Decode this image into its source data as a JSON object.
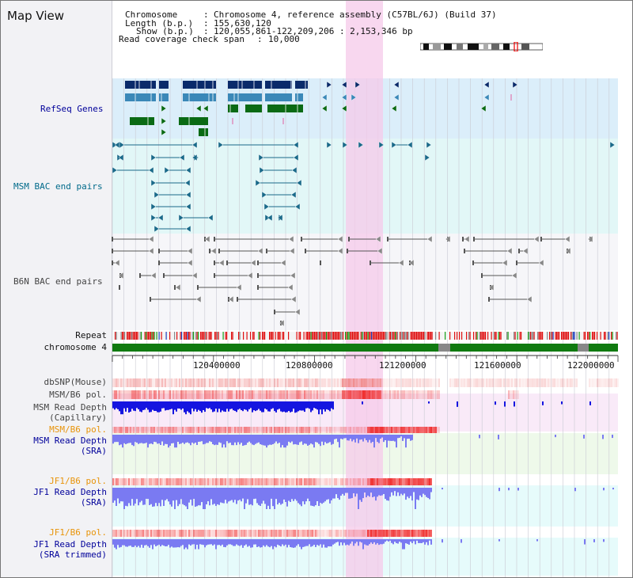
{
  "title": "Map View",
  "header": {
    "chromosome_key": "Chromosome",
    "chromosome_value": "Chromosome 4, reference assembly (C57BL/6J) (Build 37)",
    "length_key": "Length (b.p.)",
    "length_value": "155,630,120",
    "show_key": "Show (b.p.)",
    "show_value": "120,055,861-122,209,206 : 2,153,346 bp",
    "coverage_key": "Read coverage check span",
    "coverage_value": "10,000"
  },
  "tracks": {
    "refseq": "RefSeq Genes",
    "msm_bac": "MSM BAC end pairs",
    "b6n_bac": "B6N BAC end pairs",
    "repeat": "Repeat",
    "chromosome": "chromosome 4",
    "dbsnp": "dbSNP(Mouse)",
    "msm_b6_pol": "MSM/B6 pol.",
    "msm_depth_cap_1": "MSM Read Depth",
    "msm_depth_cap_2": "(Capillary)",
    "msm_b6_pol_2": "MSM/B6 pol.",
    "msm_depth_sra_1": "MSM Read Depth",
    "msm_depth_sra_2": "(SRA)",
    "jf1_b6_pol": "JF1/B6 pol.",
    "jf1_depth_sra_1": "JF1 Read Depth",
    "jf1_depth_sra_2": "(SRA)",
    "jf1_b6_pol_2": "JF1/B6 pol.",
    "jf1_depth_trim_1": "JF1 Read Depth",
    "jf1_depth_trim_2": "(SRA trimmed)"
  },
  "axis_ticks": [
    "120400000",
    "120800000",
    "121200000",
    "121600000",
    "122000000"
  ],
  "colors": {
    "refseq_bg": "#dbeefa",
    "bac_bg": "#e2f7f7",
    "highlight": "#f8d8ef",
    "gene_dark": "#0a2a6a",
    "gene_mid": "#3a88b8",
    "gene_green": "#0a6a14",
    "msm_line": "#1a6a8a",
    "b6n_line": "#555555",
    "chromosome_green": "#107a10",
    "depth_cap": "#1515e0",
    "depth_sra": "#7a7af2",
    "label_blue": "#00009a",
    "label_teal": "#006a8a",
    "label_orange": "#e8940a"
  }
}
